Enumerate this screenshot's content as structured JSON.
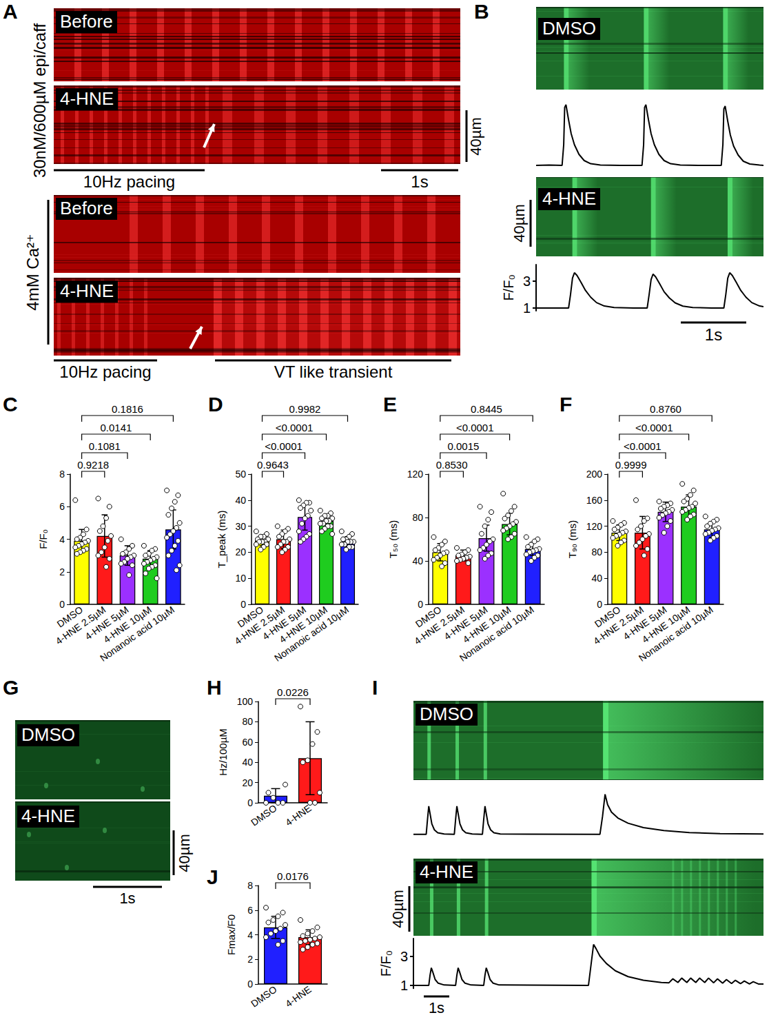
{
  "figure": {
    "A": {
      "letter": "A",
      "groups": [
        {
          "side_labels": [
            "30nM/600µM",
            "epi/caff"
          ],
          "rows": [
            "Before",
            "4-HNE"
          ],
          "scale": "40µm",
          "bars": [
            "10Hz pacing",
            "1s"
          ]
        },
        {
          "side_labels": [
            "4mM Ca²⁺"
          ],
          "rows": [
            "Before",
            "4-HNE"
          ],
          "bars": [
            "10Hz pacing",
            "VT like transient"
          ]
        }
      ]
    },
    "B": {
      "letter": "B",
      "rows": [
        "DMSO",
        "4-HNE"
      ],
      "scale": "40µm",
      "time_bar": "1s"
    },
    "G": {
      "letter": "G",
      "rows": [
        "DMSO",
        "4-HNE"
      ],
      "scale": "40µm",
      "time_bar": "1s"
    },
    "I": {
      "letter": "I",
      "rows": [
        "DMSO",
        "4-HNE"
      ],
      "scale": "40µm",
      "time_bar": "1s"
    }
  },
  "chart_data": [
    {
      "letter": "B",
      "row": "DMSO",
      "type": "line",
      "color": "#000000",
      "tick_labels": false,
      "xlim": [
        0,
        3.5
      ],
      "ylim": [
        0.8,
        6.0
      ],
      "x": [
        0,
        0.2,
        0.4,
        0.425,
        0.44,
        0.46,
        0.5,
        0.54,
        0.59,
        0.66,
        0.74,
        0.84,
        0.99,
        1.3,
        1.63,
        1.655,
        1.67,
        1.69,
        1.73,
        1.77,
        1.82,
        1.89,
        1.97,
        2.07,
        2.22,
        2.5,
        2.85,
        2.875,
        2.89,
        2.91,
        2.95,
        2.99,
        3.04,
        3.11,
        3.19,
        3.29,
        3.44,
        3.5
      ],
      "values": [
        1.0,
        1.02,
        1.0,
        2.5,
        5.2,
        5.4,
        4.3,
        3.3,
        2.5,
        1.8,
        1.35,
        1.12,
        1.03,
        1.0,
        1.0,
        2.5,
        5.2,
        5.4,
        4.3,
        3.3,
        2.5,
        1.8,
        1.35,
        1.12,
        1.03,
        1.0,
        1.0,
        2.5,
        5.1,
        5.3,
        4.2,
        3.2,
        2.4,
        1.75,
        1.3,
        1.1,
        1.02,
        1.0
      ]
    },
    {
      "letter": "B",
      "row": "4-HNE",
      "type": "line",
      "color": "#000000",
      "tick_labels": "y",
      "y_label": "F/F₀",
      "xlim": [
        0,
        3.5
      ],
      "ylim": [
        0.8,
        4.2
      ],
      "yticks": [
        1,
        3
      ],
      "x": [
        0,
        0.3,
        0.5,
        0.53,
        0.56,
        0.59,
        0.63,
        0.69,
        0.76,
        0.84,
        0.93,
        1.05,
        1.2,
        1.5,
        1.71,
        1.74,
        1.77,
        1.8,
        1.84,
        1.9,
        1.97,
        2.05,
        2.14,
        2.26,
        2.41,
        2.7,
        2.89,
        2.92,
        2.95,
        2.98,
        3.02,
        3.08,
        3.15,
        3.23,
        3.32,
        3.44,
        3.5
      ],
      "values": [
        1.0,
        1.0,
        1.0,
        2.0,
        3.2,
        3.6,
        3.4,
        2.9,
        2.3,
        1.8,
        1.4,
        1.15,
        1.04,
        1.0,
        1.0,
        2.0,
        3.1,
        3.5,
        3.3,
        2.8,
        2.2,
        1.75,
        1.38,
        1.14,
        1.04,
        1.0,
        1.0,
        2.0,
        3.2,
        3.6,
        3.4,
        2.9,
        2.3,
        1.8,
        1.4,
        1.15,
        1.1
      ]
    },
    {
      "letter": "C",
      "type": "bar",
      "categories": [
        "DMSO",
        "4-HNE 2.5µM",
        "4-HNE 5µM",
        "4-HNE 10µM",
        "Nonanoic acid 10µM"
      ],
      "values": [
        3.9,
        4.2,
        3.0,
        2.8,
        4.6
      ],
      "errors": [
        0.7,
        1.3,
        0.6,
        0.5,
        1.2
      ],
      "points": [
        [
          6.4,
          4.6,
          4.3,
          4.1,
          4.0,
          3.9,
          3.8,
          3.7,
          3.6,
          3.5,
          3.4,
          3.3,
          3.2,
          3.1
        ],
        [
          6.5,
          6.0,
          5.3,
          4.8,
          4.5,
          4.2,
          3.9,
          3.5,
          3.2,
          3.0,
          2.8,
          2.3
        ],
        [
          4.0,
          3.6,
          3.4,
          3.2,
          3.1,
          3.0,
          2.9,
          2.8,
          2.6,
          2.5,
          2.4,
          1.8
        ],
        [
          3.6,
          3.4,
          3.3,
          3.1,
          3.0,
          2.9,
          2.8,
          2.7,
          2.6,
          2.5,
          2.4,
          2.3,
          2.2,
          1.9,
          1.6
        ],
        [
          7.0,
          6.7,
          6.3,
          5.9,
          5.5,
          5.0,
          4.7,
          4.5,
          4.3,
          4.1,
          3.9,
          3.6,
          3.3,
          3.0,
          2.4,
          2.1
        ]
      ],
      "colors": [
        "#ffff00",
        "#ff1a1a",
        "#9b30ff",
        "#1fcc1f",
        "#2020ff"
      ],
      "y_label": "F/F₀",
      "ylim": [
        0,
        8
      ],
      "yticks": [
        0,
        2,
        4,
        6,
        8
      ],
      "comparisons": [
        {
          "pair": [
            "DMSO",
            "4-HNE 2.5µM"
          ],
          "label": "0.9218"
        },
        {
          "pair": [
            "DMSO",
            "4-HNE 5µM"
          ],
          "label": "0.1081"
        },
        {
          "pair": [
            "DMSO",
            "4-HNE 10µM"
          ],
          "label": "0.0141"
        },
        {
          "pair": [
            "DMSO",
            "Nonanoic acid 10µM"
          ],
          "label": "0.1816"
        }
      ]
    },
    {
      "letter": "D",
      "type": "bar",
      "categories": [
        "DMSO",
        "4-HNE 2.5µM",
        "4-HNE 5µM",
        "4-HNE 10µM",
        "Nonanoic acid 10µM"
      ],
      "values": [
        24.5,
        25,
        33.5,
        32,
        24
      ],
      "errors": [
        2,
        3.5,
        5,
        2.5,
        2
      ],
      "points": [
        [
          28,
          27,
          26,
          26,
          25,
          25,
          24,
          24,
          24,
          23,
          23,
          22,
          21
        ],
        [
          30,
          29,
          28,
          27,
          26,
          25,
          24,
          24,
          23,
          22,
          22,
          21,
          20
        ],
        [
          40,
          39,
          39,
          38,
          37,
          36,
          34,
          33,
          31,
          28,
          27,
          26,
          25,
          24
        ],
        [
          36,
          35,
          34,
          34,
          33,
          33,
          32,
          32,
          31,
          31,
          30,
          30,
          29,
          28,
          27
        ],
        [
          28,
          27,
          26,
          25,
          25,
          24,
          24,
          24,
          23,
          23,
          22,
          22,
          21
        ]
      ],
      "colors": [
        "#ffff00",
        "#ff1a1a",
        "#9b30ff",
        "#1fcc1f",
        "#2020ff"
      ],
      "y_label": "T_peak (ms)",
      "ylim": [
        0,
        50
      ],
      "yticks": [
        0,
        10,
        20,
        30,
        40,
        50
      ],
      "comparisons": [
        {
          "pair": [
            "DMSO",
            "4-HNE 2.5µM"
          ],
          "label": "0.9643"
        },
        {
          "pair": [
            "DMSO",
            "4-HNE 5µM"
          ],
          "label": "<0.0001"
        },
        {
          "pair": [
            "DMSO",
            "4-HNE 10µM"
          ],
          "label": "<0.0001"
        },
        {
          "pair": [
            "DMSO",
            "Nonanoic acid 10µM"
          ],
          "label": "0.9982"
        }
      ]
    },
    {
      "letter": "E",
      "type": "bar",
      "categories": [
        "DMSO",
        "4-HNE 2.5µM",
        "4-HNE 5µM",
        "4-HNE 10µM",
        "Nonanoic acid 10µM"
      ],
      "values": [
        48,
        45,
        61,
        74,
        51
      ],
      "errors": [
        8,
        5,
        12,
        10,
        6
      ],
      "points": [
        [
          62,
          58,
          55,
          52,
          50,
          48,
          47,
          45,
          43,
          41,
          38,
          35
        ],
        [
          52,
          50,
          48,
          46,
          45,
          44,
          43,
          42,
          41,
          40,
          38
        ],
        [
          90,
          85,
          78,
          72,
          65,
          60,
          58,
          55,
          52,
          50,
          47,
          45,
          42
        ],
        [
          102,
          90,
          86,
          82,
          79,
          76,
          74,
          72,
          70,
          68,
          65,
          62,
          60
        ],
        [
          62,
          60,
          58,
          55,
          53,
          51,
          50,
          49,
          48,
          46,
          45,
          43,
          40
        ]
      ],
      "colors": [
        "#ffff00",
        "#ff1a1a",
        "#9b30ff",
        "#1fcc1f",
        "#2020ff"
      ],
      "y_label": "T₅₀ (ms)",
      "ylim": [
        0,
        120
      ],
      "yticks": [
        0,
        40,
        80,
        120
      ],
      "comparisons": [
        {
          "pair": [
            "DMSO",
            "4-HNE 2.5µM"
          ],
          "label": "0.8530"
        },
        {
          "pair": [
            "DMSO",
            "4-HNE 5µM"
          ],
          "label": "0.0015"
        },
        {
          "pair": [
            "DMSO",
            "4-HNE 10µM"
          ],
          "label": "<0.0001"
        },
        {
          "pair": [
            "DMSO",
            "Nonanoic acid 10µM"
          ],
          "label": "0.8445"
        }
      ]
    },
    {
      "letter": "F",
      "type": "bar",
      "categories": [
        "DMSO",
        "4-HNE 2.5µM",
        "4-HNE 5µM",
        "4-HNE 10µM",
        "Nonanoic acid 10µM"
      ],
      "values": [
        110,
        110,
        142,
        150,
        115
      ],
      "errors": [
        12,
        25,
        15,
        18,
        12
      ],
      "points": [
        [
          128,
          125,
          122,
          118,
          115,
          112,
          110,
          107,
          105,
          102,
          98,
          95,
          90
        ],
        [
          160,
          132,
          128,
          120,
          115,
          108,
          105,
          100,
          95,
          90,
          85,
          75
        ],
        [
          158,
          155,
          152,
          150,
          147,
          145,
          142,
          140,
          137,
          133,
          128,
          120,
          110
        ],
        [
          185,
          175,
          168,
          162,
          158,
          155,
          150,
          148,
          145,
          142,
          138,
          135,
          130
        ],
        [
          135,
          130,
          127,
          124,
          120,
          117,
          115,
          113,
          110,
          108,
          105,
          102,
          98
        ]
      ],
      "colors": [
        "#ffff00",
        "#ff1a1a",
        "#9b30ff",
        "#1fcc1f",
        "#2020ff"
      ],
      "y_label": "T₉₀ (ms)",
      "ylim": [
        0,
        200
      ],
      "yticks": [
        0,
        40,
        80,
        120,
        160,
        200
      ],
      "comparisons": [
        {
          "pair": [
            "DMSO",
            "4-HNE 2.5µM"
          ],
          "label": "0.9999"
        },
        {
          "pair": [
            "DMSO",
            "4-HNE 5µM"
          ],
          "label": "<0.0001"
        },
        {
          "pair": [
            "DMSO",
            "4-HNE 10µM"
          ],
          "label": "<0.0001"
        },
        {
          "pair": [
            "DMSO",
            "Nonanoic acid 10µM"
          ],
          "label": "0.8760"
        }
      ]
    },
    {
      "letter": "H",
      "type": "bar",
      "categories": [
        "DMSO",
        "4-HNE"
      ],
      "values": [
        7,
        44
      ],
      "errors": [
        7,
        36
      ],
      "points": [
        [
          0,
          0,
          0,
          5,
          10,
          18
        ],
        [
          95,
          70,
          58,
          42,
          40,
          10,
          0,
          0
        ]
      ],
      "colors": [
        "#2020ff",
        "#ff1a1a"
      ],
      "y_label": "Hz/100µM",
      "ylim": [
        0,
        100
      ],
      "yticks": [
        0,
        20,
        40,
        60,
        80,
        100
      ],
      "comparisons": [
        {
          "pair": [
            "DMSO",
            "4-HNE"
          ],
          "label": "0.0226"
        }
      ]
    },
    {
      "letter": "J",
      "type": "bar",
      "categories": [
        "DMSO",
        "4-HNE"
      ],
      "values": [
        4.6,
        3.8
      ],
      "errors": [
        0.9,
        0.6
      ],
      "points": [
        [
          6.2,
          5.8,
          5.5,
          5.2,
          5.0,
          4.8,
          4.5,
          4.3,
          4.1,
          3.8,
          3.5,
          3.2
        ],
        [
          5.2,
          4.6,
          4.3,
          4.1,
          3.9,
          3.8,
          3.7,
          3.6,
          3.5,
          3.4,
          3.3,
          3.2,
          3.0,
          2.8
        ]
      ],
      "colors": [
        "#2020ff",
        "#ff1a1a"
      ],
      "y_label": "Fmax/F0",
      "ylim": [
        0,
        8
      ],
      "yticks": [
        0,
        2,
        4,
        6,
        8
      ],
      "comparisons": [
        {
          "pair": [
            "DMSO",
            "4-HNE"
          ],
          "label": "0.0176"
        }
      ]
    },
    {
      "letter": "I",
      "row": "DMSO",
      "type": "line",
      "color": "#000000",
      "tick_labels": false,
      "xlim": [
        0,
        13.7
      ],
      "ylim": [
        0.8,
        4.2
      ],
      "x": [
        0,
        0.5,
        0.55,
        0.6,
        0.65,
        0.72,
        0.82,
        0.95,
        1.2,
        1.6,
        1.65,
        1.7,
        1.75,
        1.82,
        1.92,
        2.05,
        2.3,
        2.7,
        2.75,
        2.8,
        2.85,
        2.92,
        3.02,
        3.15,
        3.4,
        7.3,
        7.4,
        7.5,
        7.6,
        7.75,
        8.0,
        8.4,
        9.0,
        9.8,
        10.8,
        12.0,
        13.7
      ],
      "values": [
        1.0,
        1.0,
        2.0,
        2.9,
        2.4,
        1.7,
        1.3,
        1.1,
        1.02,
        1.0,
        2.0,
        2.9,
        2.4,
        1.7,
        1.3,
        1.1,
        1.02,
        1.0,
        2.0,
        2.9,
        2.4,
        1.7,
        1.3,
        1.1,
        1.02,
        1.0,
        2.2,
        3.7,
        3.0,
        2.5,
        2.1,
        1.75,
        1.45,
        1.25,
        1.12,
        1.05,
        1.02
      ]
    },
    {
      "letter": "I",
      "row": "4-HNE",
      "type": "line",
      "color": "#000000",
      "tick_labels": "y",
      "y_label": "F/F₀",
      "xlim": [
        0,
        13.7
      ],
      "ylim": [
        0.8,
        4.2
      ],
      "yticks": [
        1,
        3
      ],
      "x": [
        0,
        0.6,
        0.65,
        0.7,
        0.76,
        0.85,
        0.97,
        1.2,
        1.65,
        1.7,
        1.75,
        1.81,
        1.9,
        2.02,
        2.25,
        2.75,
        2.8,
        2.85,
        2.91,
        3.0,
        3.12,
        3.35,
        6.85,
        6.95,
        7.05,
        7.15,
        7.3,
        7.55,
        7.9,
        8.4,
        9.0,
        9.7,
        10.0,
        10.15,
        10.35,
        10.5,
        10.7,
        10.85,
        11.05,
        11.2,
        11.4,
        11.55,
        11.75,
        11.9,
        12.1,
        12.25,
        12.45,
        12.6,
        12.8,
        12.95,
        13.15,
        13.3,
        13.5,
        13.7
      ],
      "values": [
        1.0,
        1.0,
        1.7,
        2.2,
        1.9,
        1.4,
        1.15,
        1.03,
        1.0,
        1.7,
        2.2,
        1.9,
        1.4,
        1.15,
        1.03,
        1.0,
        1.7,
        2.2,
        1.9,
        1.4,
        1.15,
        1.03,
        1.0,
        2.4,
        3.8,
        3.5,
        3.0,
        2.5,
        2.0,
        1.6,
        1.35,
        1.2,
        1.18,
        1.45,
        1.2,
        1.5,
        1.2,
        1.5,
        1.2,
        1.5,
        1.2,
        1.5,
        1.18,
        1.45,
        1.15,
        1.4,
        1.13,
        1.35,
        1.12,
        1.3,
        1.1,
        1.25,
        1.1,
        1.1
      ]
    }
  ]
}
